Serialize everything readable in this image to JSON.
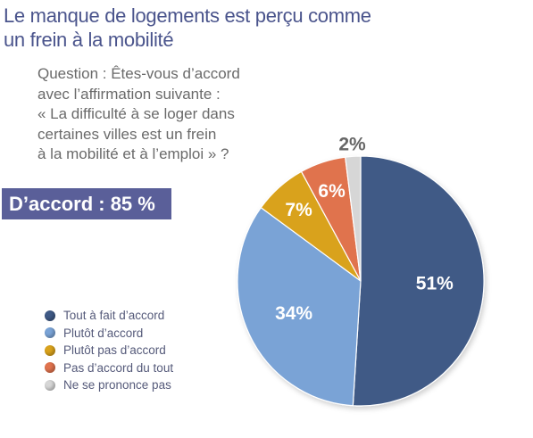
{
  "title_lines": [
    "Le manque de logements est perçu comme",
    "un frein à la mobilité"
  ],
  "question_lines": [
    "Question : Êtes-vous d’accord",
    "avec l’affirmation suivante :",
    "« La difficulté à se loger dans",
    "certaines villes est un frein",
    "à la mobilité et à l’emploi » ?"
  ],
  "agree_summary": "D’accord : 85 %",
  "chart_data": {
    "type": "pie",
    "slices": [
      {
        "label": "Tout à fait d’accord",
        "value": 51,
        "value_label": "51%",
        "color": "#3f5a86"
      },
      {
        "label": "Plutôt d’accord",
        "value": 34,
        "value_label": "34%",
        "color": "#7aa3d6"
      },
      {
        "label": "Plutôt pas d’accord",
        "value": 7,
        "value_label": "7%",
        "color": "#d9a21c"
      },
      {
        "label": "Pas d’accord du tout",
        "value": 6,
        "value_label": "6%",
        "color": "#e0734e"
      },
      {
        "label": "Ne se prononce pas",
        "value": 2,
        "value_label": "2%",
        "color": "#d6d6d6"
      }
    ],
    "legend_position": "bottom-left"
  },
  "colors": {
    "title": "#4a548c",
    "agree_box": "#5a5f99"
  }
}
